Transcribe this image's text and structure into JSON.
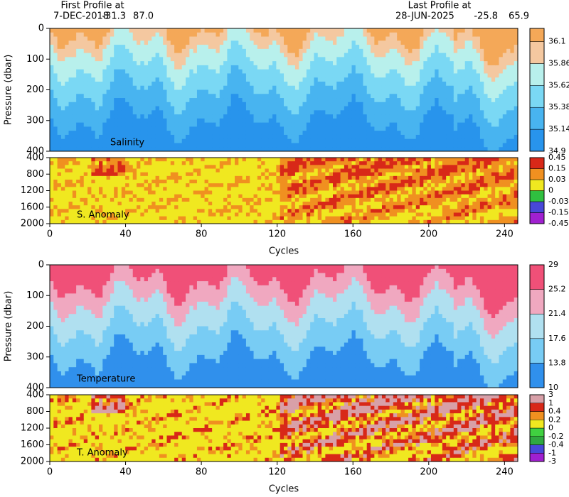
{
  "header": {
    "first_title": "First Profile at",
    "first_date": "7-DEC-2018",
    "first_lat": "-31.3",
    "first_lon": "87.0",
    "last_title": "Last Profile at",
    "last_date": "28-JUN-2025",
    "last_lat": "-25.8",
    "last_lon": "65.9"
  },
  "chart_data": [
    {
      "type": "profile",
      "label": "Salinity",
      "ylabel": "Pressure (dbar)",
      "xlim": [
        0,
        247
      ],
      "ylim": [
        0,
        400
      ],
      "yticks": [
        0,
        100,
        200,
        300,
        400
      ],
      "levels": [
        34.9,
        35.14,
        35.38,
        35.62,
        35.86,
        36.1
      ],
      "colors": [
        "#2894ec",
        "#48b4f0",
        "#7ad8f4",
        "#b8f0ec",
        "#f4c8a0",
        "#f4a858"
      ]
    },
    {
      "type": "anomaly",
      "label": "S. Anomaly",
      "xlabel": "Cycles",
      "xlim": [
        0,
        247
      ],
      "xticks": [
        0,
        40,
        80,
        120,
        160,
        200,
        240
      ],
      "ylim": [
        400,
        2000
      ],
      "yticks": [
        400,
        800,
        1200,
        1600,
        2000
      ],
      "levels": [
        -0.45,
        -0.15,
        -0.03,
        0,
        0.03,
        0.15,
        0.45
      ],
      "colors": [
        "#a020d0",
        "#4848d8",
        "#30c040",
        "#f0e820",
        "#f09020",
        "#d82818"
      ]
    },
    {
      "type": "profile",
      "label": "Temperature",
      "ylabel": "Pressure (dbar)",
      "xlim": [
        0,
        247
      ],
      "ylim": [
        0,
        400
      ],
      "yticks": [
        0,
        100,
        200,
        300,
        400
      ],
      "levels": [
        10,
        13.8,
        17.6,
        21.4,
        25.2,
        29
      ],
      "colors": [
        "#3090ec",
        "#78ccf4",
        "#b0e0f0",
        "#f0a8c0",
        "#f05078"
      ]
    },
    {
      "type": "anomaly",
      "label": "T. Anomaly",
      "xlabel": "Cycles",
      "xlim": [
        0,
        247
      ],
      "xticks": [
        0,
        40,
        80,
        120,
        160,
        200,
        240
      ],
      "ylim": [
        400,
        2000
      ],
      "yticks": [
        400,
        800,
        1200,
        1600,
        2000
      ],
      "levels": [
        -3,
        -1,
        -0.4,
        -0.2,
        0,
        0.2,
        0.4,
        1,
        3
      ],
      "colors": [
        "#a020d0",
        "#4848d8",
        "#30a840",
        "#40d040",
        "#f0e820",
        "#f09020",
        "#d82818",
        "#d8a0a8"
      ]
    }
  ]
}
